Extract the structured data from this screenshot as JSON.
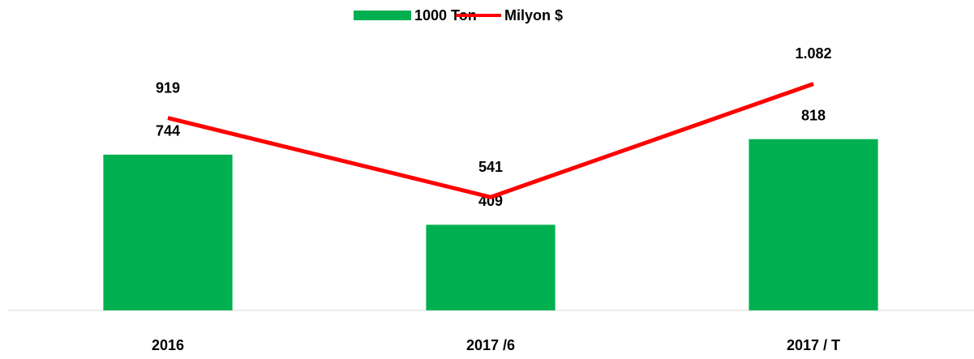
{
  "chart_data": {
    "type": "bar",
    "categories": [
      "2016",
      "2017 /6",
      "2017 / T"
    ],
    "series": [
      {
        "name": "1000 Ton",
        "type": "bar",
        "color": "#00b050",
        "values": [
          744,
          409,
          818
        ]
      },
      {
        "name": "Milyon $",
        "type": "line",
        "color": "#ff0000",
        "values": [
          919,
          541,
          1082
        ],
        "value_labels": [
          "919",
          "541",
          "1.082"
        ]
      }
    ],
    "ylim": [
      0,
      1200
    ],
    "legend": "top"
  }
}
